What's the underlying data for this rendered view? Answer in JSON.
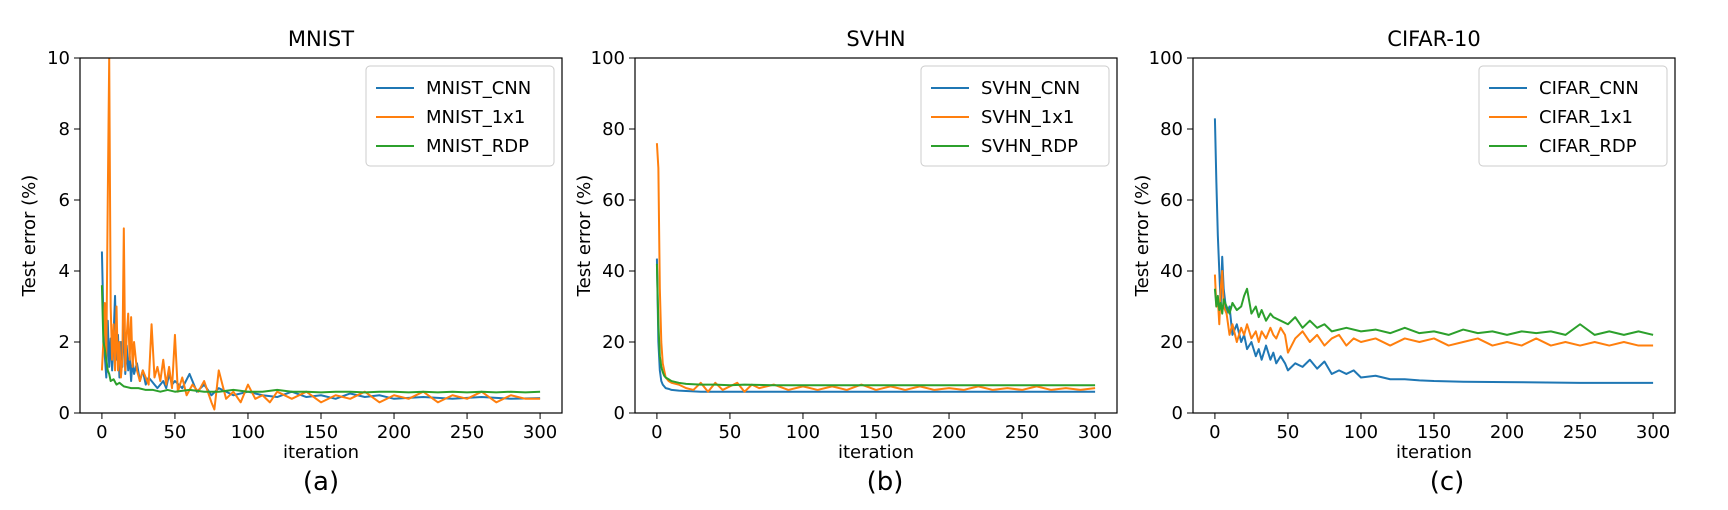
{
  "chart_data": [
    {
      "type": "line",
      "title": "MNIST",
      "xlabel": "iteration",
      "ylabel": "Test error (%)",
      "caption": "(a)",
      "xlim": [
        -15,
        315
      ],
      "ylim": [
        0,
        10
      ],
      "xticks": [
        0,
        50,
        100,
        150,
        200,
        250,
        300
      ],
      "yticks": [
        0,
        2,
        4,
        6,
        8,
        10
      ],
      "legend_position": "top-right",
      "series": [
        {
          "name": "MNIST_CNN",
          "color": "#1f77b4",
          "x": [
            0,
            1,
            2,
            3,
            4,
            5,
            6,
            7,
            8,
            9,
            10,
            11,
            12,
            13,
            14,
            15,
            16,
            17,
            18,
            19,
            20,
            21,
            22,
            24,
            26,
            28,
            30,
            32,
            34,
            36,
            38,
            40,
            42,
            44,
            46,
            48,
            50,
            55,
            60,
            65,
            70,
            75,
            80,
            90,
            100,
            110,
            120,
            130,
            140,
            150,
            160,
            170,
            180,
            190,
            200,
            220,
            240,
            260,
            280,
            300
          ],
          "y": [
            4.55,
            2.7,
            1.6,
            1.0,
            2.6,
            1.3,
            2.1,
            1.2,
            2.2,
            3.3,
            1.5,
            2.2,
            1.0,
            2.0,
            1.3,
            2.8,
            1.1,
            1.9,
            1.2,
            1.6,
            0.9,
            1.5,
            1.1,
            1.4,
            0.9,
            1.2,
            0.8,
            1.0,
            0.9,
            0.8,
            0.7,
            0.8,
            0.9,
            0.7,
            1.1,
            0.8,
            0.9,
            0.7,
            1.1,
            0.6,
            0.8,
            0.5,
            0.7,
            0.5,
            0.6,
            0.5,
            0.45,
            0.6,
            0.45,
            0.5,
            0.4,
            0.55,
            0.45,
            0.5,
            0.4,
            0.45,
            0.4,
            0.45,
            0.4,
            0.42
          ]
        },
        {
          "name": "MNIST_1x1",
          "color": "#ff7f0e",
          "x": [
            0,
            1,
            2,
            3,
            4,
            5,
            6,
            7,
            8,
            9,
            10,
            11,
            12,
            13,
            14,
            15,
            16,
            17,
            18,
            19,
            20,
            21,
            22,
            24,
            26,
            28,
            30,
            32,
            34,
            36,
            38,
            40,
            42,
            44,
            46,
            48,
            50,
            52,
            55,
            58,
            62,
            66,
            70,
            75,
            77,
            80,
            85,
            90,
            95,
            100,
            105,
            110,
            115,
            120,
            130,
            140,
            150,
            160,
            170,
            180,
            190,
            200,
            210,
            220,
            230,
            240,
            250,
            260,
            270,
            280,
            290,
            300
          ],
          "y": [
            1.2,
            2.0,
            3.1,
            1.5,
            6.0,
            10.0,
            3.0,
            1.5,
            2.5,
            1.2,
            3.0,
            1.2,
            2.0,
            1.0,
            1.5,
            5.2,
            1.2,
            2.2,
            2.8,
            1.5,
            2.7,
            1.3,
            2.0,
            1.2,
            0.9,
            1.2,
            1.0,
            0.8,
            2.5,
            1.0,
            1.3,
            0.9,
            1.5,
            0.8,
            1.3,
            0.7,
            2.2,
            0.6,
            1.0,
            0.5,
            0.8,
            0.6,
            0.9,
            0.3,
            0.1,
            1.2,
            0.4,
            0.6,
            0.3,
            0.8,
            0.4,
            0.5,
            0.3,
            0.6,
            0.4,
            0.6,
            0.3,
            0.5,
            0.4,
            0.6,
            0.3,
            0.5,
            0.4,
            0.6,
            0.3,
            0.5,
            0.4,
            0.6,
            0.3,
            0.5,
            0.4,
            0.4
          ]
        },
        {
          "name": "MNIST_RDP",
          "color": "#2ca02c",
          "x": [
            0,
            1,
            2,
            3,
            4,
            5,
            6,
            8,
            10,
            12,
            15,
            20,
            25,
            30,
            35,
            40,
            45,
            50,
            60,
            70,
            80,
            90,
            100,
            110,
            120,
            130,
            140,
            150,
            160,
            170,
            180,
            190,
            200,
            210,
            220,
            230,
            240,
            250,
            260,
            270,
            280,
            290,
            300
          ],
          "y": [
            3.6,
            2.0,
            1.8,
            1.5,
            1.2,
            1.1,
            0.9,
            0.95,
            0.8,
            0.85,
            0.75,
            0.7,
            0.7,
            0.65,
            0.65,
            0.6,
            0.65,
            0.6,
            0.65,
            0.6,
            0.6,
            0.65,
            0.6,
            0.6,
            0.65,
            0.6,
            0.6,
            0.58,
            0.6,
            0.6,
            0.58,
            0.6,
            0.6,
            0.58,
            0.6,
            0.58,
            0.6,
            0.58,
            0.6,
            0.58,
            0.6,
            0.58,
            0.6
          ]
        }
      ]
    },
    {
      "type": "line",
      "title": "SVHN",
      "xlabel": "iteration",
      "ylabel": "Test error (%)",
      "caption": "(b)",
      "xlim": [
        -15,
        315
      ],
      "ylim": [
        0,
        100
      ],
      "xticks": [
        0,
        50,
        100,
        150,
        200,
        250,
        300
      ],
      "yticks": [
        0,
        20,
        40,
        60,
        80,
        100
      ],
      "legend_position": "top-right",
      "series": [
        {
          "name": "SVHN_CNN",
          "color": "#1f77b4",
          "x": [
            0,
            1,
            2,
            3,
            4,
            5,
            6,
            8,
            10,
            15,
            20,
            30,
            50,
            100,
            150,
            200,
            250,
            300
          ],
          "y": [
            43.5,
            20.0,
            12.0,
            9.0,
            8.0,
            7.5,
            7.0,
            6.8,
            6.5,
            6.3,
            6.2,
            6.0,
            6.0,
            6.0,
            6.0,
            6.0,
            6.0,
            6.0
          ]
        },
        {
          "name": "SVHN_1x1",
          "color": "#ff7f0e",
          "x": [
            0,
            1,
            2,
            3,
            4,
            5,
            6,
            8,
            10,
            15,
            20,
            25,
            30,
            35,
            40,
            45,
            50,
            55,
            60,
            65,
            70,
            80,
            90,
            100,
            110,
            120,
            130,
            140,
            150,
            160,
            170,
            180,
            190,
            200,
            210,
            220,
            230,
            240,
            250,
            260,
            270,
            280,
            290,
            300
          ],
          "y": [
            76.0,
            69.0,
            35.0,
            20.0,
            14.0,
            12.0,
            10.0,
            9.0,
            8.5,
            8.0,
            7.0,
            6.5,
            8.5,
            6.0,
            8.5,
            6.5,
            7.5,
            8.5,
            6.0,
            8.0,
            7.0,
            8.0,
            6.5,
            7.5,
            6.5,
            7.5,
            6.5,
            8.0,
            6.5,
            7.5,
            6.5,
            7.5,
            6.5,
            7.0,
            6.5,
            7.5,
            6.5,
            7.0,
            6.5,
            7.5,
            6.5,
            7.0,
            6.5,
            7.0
          ]
        },
        {
          "name": "SVHN_RDP",
          "color": "#2ca02c",
          "x": [
            0,
            1,
            2,
            3,
            4,
            5,
            6,
            8,
            10,
            15,
            20,
            30,
            40,
            50,
            60,
            80,
            100,
            120,
            140,
            160,
            180,
            200,
            220,
            240,
            260,
            280,
            300
          ],
          "y": [
            42.0,
            25.0,
            16.0,
            13.0,
            11.5,
            10.5,
            10.0,
            9.5,
            9.0,
            8.5,
            8.2,
            8.0,
            8.0,
            7.8,
            8.0,
            7.8,
            7.8,
            7.8,
            7.8,
            7.8,
            7.8,
            7.8,
            7.8,
            7.8,
            7.8,
            7.8,
            7.8
          ]
        }
      ]
    },
    {
      "type": "line",
      "title": "CIFAR-10",
      "xlabel": "iteration",
      "ylabel": "Test error (%)",
      "caption": "(c)",
      "xlim": [
        -15,
        315
      ],
      "ylim": [
        0,
        100
      ],
      "xticks": [
        0,
        50,
        100,
        150,
        200,
        250,
        300
      ],
      "yticks": [
        0,
        20,
        40,
        60,
        80,
        100
      ],
      "legend_position": "top-right",
      "series": [
        {
          "name": "CIFAR_CNN",
          "color": "#1f77b4",
          "x": [
            0,
            1,
            2,
            3,
            4,
            5,
            6,
            8,
            10,
            12,
            15,
            18,
            20,
            22,
            25,
            28,
            30,
            32,
            35,
            38,
            40,
            42,
            45,
            48,
            50,
            55,
            60,
            65,
            70,
            75,
            80,
            85,
            90,
            95,
            100,
            110,
            120,
            130,
            140,
            150,
            170,
            200,
            250,
            300
          ],
          "y": [
            83.0,
            65.0,
            50.0,
            40.0,
            30.0,
            44.0,
            35.0,
            28.0,
            30.0,
            22.0,
            25.0,
            20.0,
            22.0,
            18.0,
            20.0,
            16.0,
            18.0,
            15.0,
            19.0,
            15.0,
            17.0,
            14.0,
            16.0,
            14.0,
            12.0,
            14.0,
            13.0,
            15.0,
            12.5,
            14.5,
            11.0,
            12.0,
            11.0,
            12.0,
            10.0,
            10.5,
            9.5,
            9.5,
            9.2,
            9.0,
            8.8,
            8.7,
            8.5,
            8.5
          ]
        },
        {
          "name": "CIFAR_1x1",
          "color": "#ff7f0e",
          "x": [
            0,
            1,
            2,
            3,
            4,
            5,
            6,
            8,
            10,
            12,
            15,
            18,
            20,
            22,
            25,
            28,
            30,
            32,
            35,
            38,
            40,
            42,
            45,
            48,
            50,
            55,
            60,
            65,
            70,
            75,
            80,
            85,
            90,
            95,
            100,
            110,
            120,
            130,
            140,
            150,
            160,
            170,
            180,
            190,
            200,
            210,
            220,
            230,
            240,
            250,
            260,
            270,
            280,
            290,
            300
          ],
          "y": [
            39.0,
            30.0,
            32.0,
            25.0,
            35.0,
            40.0,
            30.0,
            28.0,
            22.0,
            25.0,
            20.0,
            24.0,
            22.0,
            25.0,
            21.0,
            23.0,
            20.0,
            23.0,
            21.0,
            24.0,
            22.0,
            21.0,
            24.0,
            22.0,
            17.0,
            21.0,
            23.0,
            20.0,
            22.0,
            19.0,
            21.0,
            22.0,
            19.0,
            21.0,
            20.0,
            21.0,
            19.0,
            21.0,
            20.0,
            21.0,
            19.0,
            20.0,
            21.0,
            19.0,
            20.0,
            19.0,
            21.0,
            19.0,
            20.0,
            19.0,
            20.0,
            19.0,
            20.0,
            19.0,
            19.0
          ]
        },
        {
          "name": "CIFAR_RDP",
          "color": "#2ca02c",
          "x": [
            0,
            1,
            2,
            3,
            4,
            5,
            6,
            8,
            10,
            12,
            15,
            18,
            20,
            22,
            25,
            28,
            30,
            32,
            35,
            38,
            40,
            45,
            50,
            55,
            60,
            65,
            70,
            75,
            80,
            90,
            100,
            110,
            120,
            130,
            140,
            150,
            160,
            170,
            180,
            190,
            200,
            210,
            220,
            230,
            240,
            250,
            260,
            270,
            280,
            290,
            300
          ],
          "y": [
            35.0,
            30.0,
            33.0,
            29.0,
            31.0,
            28.0,
            32.0,
            30.0,
            28.0,
            31.0,
            29.0,
            30.0,
            33.0,
            35.0,
            28.0,
            30.0,
            27.0,
            29.0,
            26.0,
            28.0,
            27.0,
            26.0,
            25.0,
            27.0,
            24.0,
            26.0,
            24.0,
            25.0,
            23.0,
            24.0,
            23.0,
            23.5,
            22.5,
            24.0,
            22.5,
            23.0,
            22.0,
            23.5,
            22.5,
            23.0,
            22.0,
            23.0,
            22.5,
            23.0,
            22.0,
            25.0,
            22.0,
            23.0,
            22.0,
            23.0,
            22.0
          ]
        }
      ]
    }
  ]
}
